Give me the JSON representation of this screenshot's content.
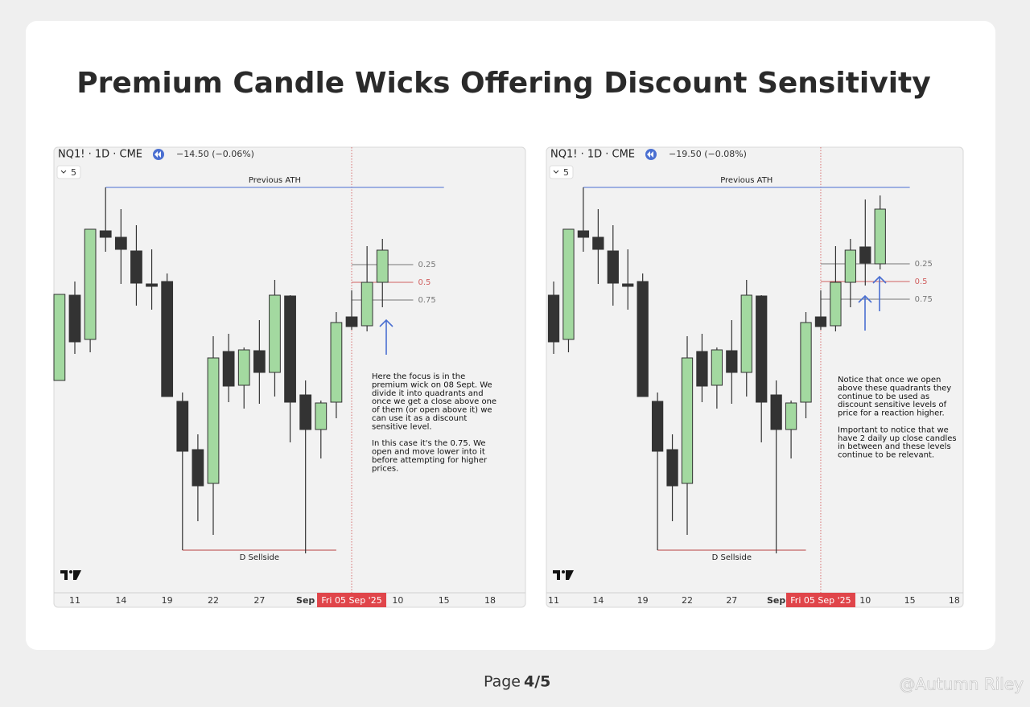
{
  "title": "Premium Candle Wicks Offering Discount Sensitivity",
  "page": {
    "label": "Page",
    "number": "4/5"
  },
  "watermark": "@Autumn Riley",
  "chart_data": [
    {
      "type": "candlestick",
      "symbol": "NQ1! · 1D · CME",
      "change": "−14.50 (−0.06%)",
      "interval_badge": "5",
      "x": [
        0,
        1,
        2,
        3,
        4,
        5,
        6,
        7,
        8,
        9,
        10,
        11,
        12,
        13,
        14,
        15,
        16,
        17,
        18,
        19,
        20,
        21
      ],
      "open": [
        262,
        368,
        313,
        448,
        440,
        423,
        382,
        385,
        236,
        176,
        134,
        298,
        256,
        299,
        272,
        367,
        244,
        201,
        235,
        341,
        330,
        384
      ],
      "high": [
        369,
        385,
        450,
        502,
        475,
        455,
        425,
        395,
        247,
        195,
        317,
        320,
        303,
        337,
        387,
        368,
        262,
        237,
        347,
        374,
        429,
        438
      ],
      "low": [
        262,
        295,
        297,
        422,
        382,
        355,
        350,
        242,
        51,
        87,
        70,
        235,
        227,
        233,
        242,
        185,
        47,
        165,
        215,
        325,
        323,
        353
      ],
      "close": [
        369,
        310,
        450,
        440,
        425,
        383,
        379,
        242,
        174,
        131,
        290,
        255,
        300,
        272,
        368,
        235,
        201,
        234,
        334,
        329,
        384,
        424
      ],
      "up_color": "#a3d9a0",
      "down_color": "#333333",
      "xlim": [
        -0.36,
        30.3
      ],
      "ylim": [
        0,
        552
      ],
      "xticks": [
        {
          "value": 1,
          "label": "11"
        },
        {
          "value": 4,
          "label": "14"
        },
        {
          "value": 7,
          "label": "19"
        },
        {
          "value": 10,
          "label": "22"
        },
        {
          "value": 13,
          "label": "27"
        },
        {
          "value": 16,
          "label": "Sep"
        },
        {
          "value": 22,
          "label": "10"
        },
        {
          "value": 25,
          "label": "15"
        },
        {
          "value": 28,
          "label": "18"
        }
      ],
      "cursor": {
        "x": 19,
        "label": "Fri 05 Sep '25"
      },
      "levels": [
        {
          "name": "Previous ATH",
          "value": 502,
          "xrange": [
            3,
            25
          ],
          "color": "#4a6fd1",
          "label_pos": "above"
        },
        {
          "name": "D Sellside",
          "value": 51,
          "xrange": [
            8,
            18
          ],
          "color": "#b84040",
          "label_pos": "below"
        },
        {
          "name": "0.25",
          "value": 406,
          "xrange": [
            19,
            23
          ],
          "color": "#777777",
          "label_pos": "right"
        },
        {
          "name": "0.5",
          "value": 384,
          "xrange": [
            19,
            23
          ],
          "color": "#d06060",
          "label_pos": "right"
        },
        {
          "name": "0.75",
          "value": 362,
          "xrange": [
            19,
            23
          ],
          "color": "#777777",
          "label_pos": "right"
        }
      ],
      "annotation": [
        [
          "Here the focus is in the",
          "premium wick on 08 Sept. We",
          "divide it into quadrants and",
          "once we get a close above one",
          "of them (or open above it) we",
          "can use it as a discount",
          "sensitive level."
        ],
        [
          "In this case it's the 0.75. We",
          "open and move lower into it",
          "before attempting for higher",
          "prices."
        ]
      ]
    },
    {
      "type": "candlestick",
      "symbol": "NQ1! · 1D · CME",
      "change": "−19.50 (−0.08%)",
      "interval_badge": "5",
      "x": [
        1,
        2,
        3,
        4,
        5,
        6,
        7,
        8,
        9,
        10,
        11,
        12,
        13,
        14,
        15,
        16,
        17,
        18,
        19,
        20,
        21,
        22,
        23
      ],
      "open": [
        368,
        313,
        448,
        440,
        423,
        382,
        385,
        236,
        176,
        134,
        298,
        256,
        299,
        272,
        367,
        244,
        201,
        235,
        341,
        330,
        384,
        428,
        407
      ],
      "high": [
        385,
        450,
        502,
        475,
        455,
        425,
        395,
        247,
        195,
        317,
        320,
        303,
        337,
        387,
        368,
        262,
        237,
        347,
        374,
        429,
        438,
        487,
        492
      ],
      "low": [
        295,
        297,
        422,
        382,
        355,
        350,
        242,
        51,
        87,
        70,
        235,
        227,
        233,
        242,
        185,
        47,
        165,
        215,
        325,
        323,
        353,
        380,
        400
      ],
      "close": [
        310,
        450,
        440,
        425,
        383,
        379,
        242,
        174,
        131,
        290,
        255,
        300,
        272,
        368,
        235,
        201,
        234,
        334,
        329,
        384,
        424,
        408,
        475
      ],
      "up_color": "#a3d9a0",
      "down_color": "#333333",
      "xlim": [
        0.51,
        28.6
      ],
      "ylim": [
        0,
        552
      ],
      "xticks": [
        {
          "value": 1,
          "label": "11"
        },
        {
          "value": 4,
          "label": "14"
        },
        {
          "value": 7,
          "label": "19"
        },
        {
          "value": 10,
          "label": "22"
        },
        {
          "value": 13,
          "label": "27"
        },
        {
          "value": 16,
          "label": "Sep"
        },
        {
          "value": 22,
          "label": "10"
        },
        {
          "value": 25,
          "label": "15"
        },
        {
          "value": 28,
          "label": "18"
        }
      ],
      "cursor": {
        "x": 19,
        "label": "Fri 05 Sep '25"
      },
      "levels": [
        {
          "name": "Previous ATH",
          "value": 502,
          "xrange": [
            3,
            25
          ],
          "color": "#4a6fd1",
          "label_pos": "above"
        },
        {
          "name": "D Sellside",
          "value": 51,
          "xrange": [
            8,
            18
          ],
          "color": "#b84040",
          "label_pos": "below"
        },
        {
          "name": "0.25",
          "value": 407,
          "xrange": [
            19,
            25
          ],
          "color": "#777777",
          "label_pos": "right"
        },
        {
          "name": "0.5",
          "value": 385,
          "xrange": [
            19,
            25
          ],
          "color": "#d06060",
          "label_pos": "right"
        },
        {
          "name": "0.75",
          "value": 363,
          "xrange": [
            19,
            25
          ],
          "color": "#777777",
          "label_pos": "right"
        }
      ],
      "annotation": [
        [
          "Notice that once we open",
          "above these quadrants they",
          "continue to be used as",
          "discount sensitive levels of",
          "price for a reaction higher."
        ],
        [
          "Important to notice that we",
          "have 2 daily up close candles",
          "in between and these levels",
          "continue to be relevant."
        ]
      ]
    }
  ]
}
